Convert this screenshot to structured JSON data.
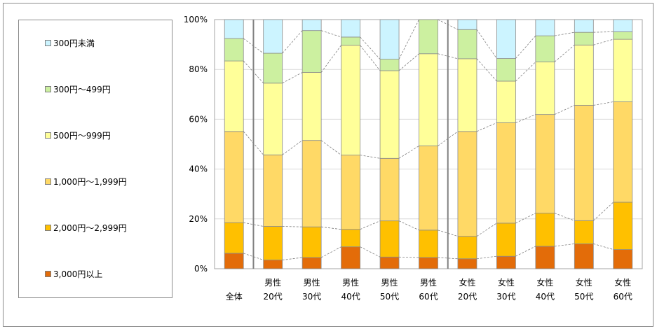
{
  "chart_data": {
    "type": "bar",
    "stacked": true,
    "percent_stacked": true,
    "ylim": [
      0,
      100
    ],
    "yticks": [
      "0%",
      "20%",
      "40%",
      "60%",
      "80%",
      "100%"
    ],
    "categories": [
      [
        "全体"
      ],
      [
        "男性",
        "20代"
      ],
      [
        "男性",
        "30代"
      ],
      [
        "男性",
        "40代"
      ],
      [
        "男性",
        "50代"
      ],
      [
        "男性",
        "60代"
      ],
      [
        "女性",
        "20代"
      ],
      [
        "女性",
        "30代"
      ],
      [
        "女性",
        "40代"
      ],
      [
        "女性",
        "50代"
      ],
      [
        "女性",
        "60代"
      ]
    ],
    "group_dividers_after": [
      0,
      5
    ],
    "legend_placement": "left",
    "series": [
      {
        "name": "3,000円以上",
        "color": "#E36C09",
        "values": [
          6.2,
          3.5,
          4.5,
          8.8,
          4.7,
          4.5,
          4.0,
          5.0,
          9.0,
          10.0,
          7.7
        ]
      },
      {
        "name": "2,000円～2,999円",
        "color": "#FFC000",
        "values": [
          12.3,
          13.5,
          12.3,
          7.0,
          14.5,
          11.0,
          9.0,
          13.3,
          13.3,
          9.3,
          19.0
        ]
      },
      {
        "name": "1,000円～1,999円",
        "color": "#FFD966",
        "values": [
          36.6,
          28.7,
          34.7,
          29.8,
          25.1,
          33.8,
          42.1,
          40.3,
          39.6,
          46.3,
          40.3
        ]
      },
      {
        "name": "500円～999円",
        "color": "#FFFF99",
        "values": [
          28.3,
          28.8,
          27.3,
          44.1,
          35.2,
          37.0,
          29.2,
          16.7,
          21.1,
          24.2,
          25.1
        ]
      },
      {
        "name": "300円～499円",
        "color": "#CCF0A0",
        "values": [
          9.0,
          12.0,
          16.8,
          3.3,
          4.6,
          13.7,
          11.7,
          9.1,
          10.5,
          5.1,
          3.0
        ]
      },
      {
        "name": "300円未満",
        "color": "#CCF4FF",
        "values": [
          7.6,
          13.5,
          4.4,
          7.0,
          15.9,
          0.0,
          4.0,
          15.6,
          6.5,
          5.1,
          4.9
        ]
      }
    ]
  }
}
